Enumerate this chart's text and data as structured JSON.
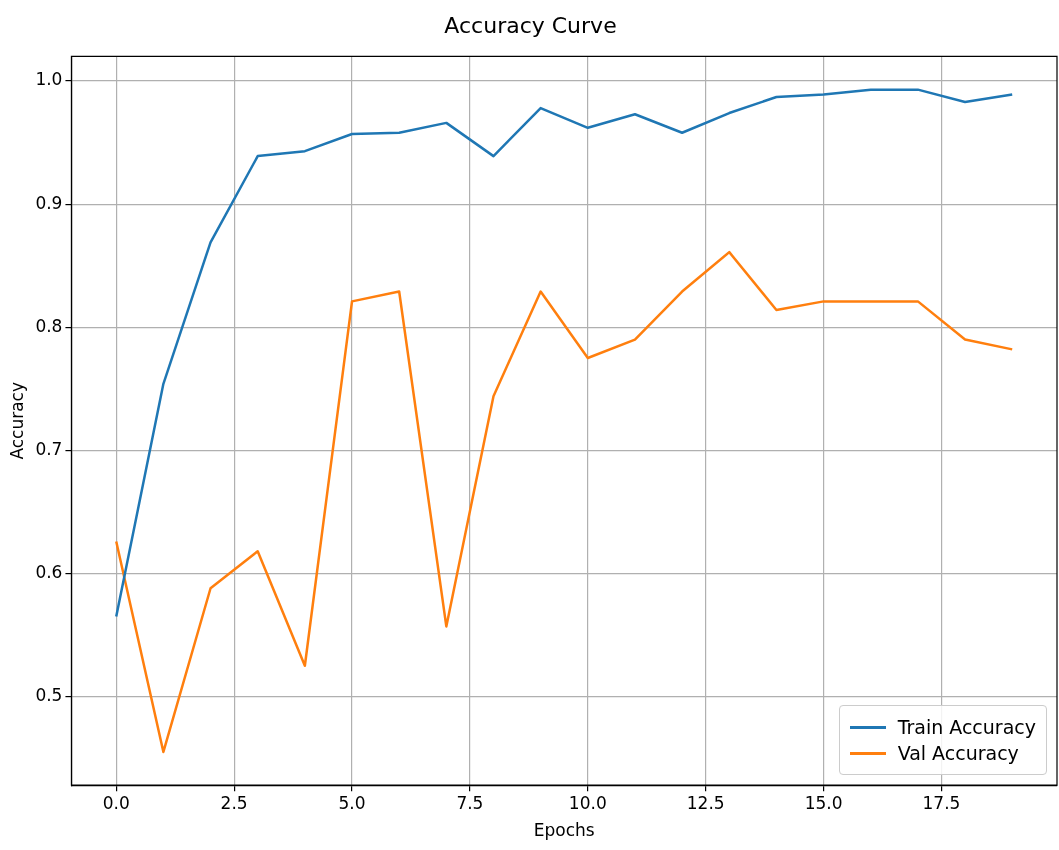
{
  "chart_data": {
    "type": "line",
    "title": "Accuracy Curve",
    "xlabel": "Epochs",
    "ylabel": "Accuracy",
    "x": [
      0,
      1,
      2,
      3,
      4,
      5,
      6,
      7,
      8,
      9,
      10,
      11,
      12,
      13,
      14,
      15,
      16,
      17,
      18,
      19
    ],
    "series": [
      {
        "name": "Train Accuracy",
        "color": "#1f77b4",
        "values": [
          0.565,
          0.754,
          0.869,
          0.939,
          0.943,
          0.957,
          0.958,
          0.966,
          0.939,
          0.978,
          0.962,
          0.973,
          0.958,
          0.974,
          0.987,
          0.989,
          0.993,
          0.993,
          0.983,
          0.989
        ]
      },
      {
        "name": "Val Accuracy",
        "color": "#ff7f0e",
        "values": [
          0.626,
          0.455,
          0.588,
          0.618,
          0.525,
          0.821,
          0.829,
          0.557,
          0.744,
          0.829,
          0.775,
          0.79,
          0.829,
          0.861,
          0.814,
          0.821,
          0.821,
          0.821,
          0.79,
          0.782
        ]
      }
    ],
    "xlim": [
      -0.95,
      19.95
    ],
    "xticks": [
      {
        "value": 0,
        "label": "0.0"
      },
      {
        "value": 2.5,
        "label": "2.5"
      },
      {
        "value": 5,
        "label": "5.0"
      },
      {
        "value": 7.5,
        "label": "7.5"
      },
      {
        "value": 10,
        "label": "10.0"
      },
      {
        "value": 12.5,
        "label": "12.5"
      },
      {
        "value": 15,
        "label": "15.0"
      },
      {
        "value": 17.5,
        "label": "17.5"
      }
    ],
    "ylim": [
      0.428,
      1.02
    ],
    "yticks": [
      {
        "value": 0.5,
        "label": "0.5"
      },
      {
        "value": 0.6,
        "label": "0.6"
      },
      {
        "value": 0.7,
        "label": "0.7"
      },
      {
        "value": 0.8,
        "label": "0.8"
      },
      {
        "value": 0.9,
        "label": "0.9"
      },
      {
        "value": 1.0,
        "label": "1.0"
      }
    ],
    "grid": true,
    "legend": "bottom right"
  }
}
